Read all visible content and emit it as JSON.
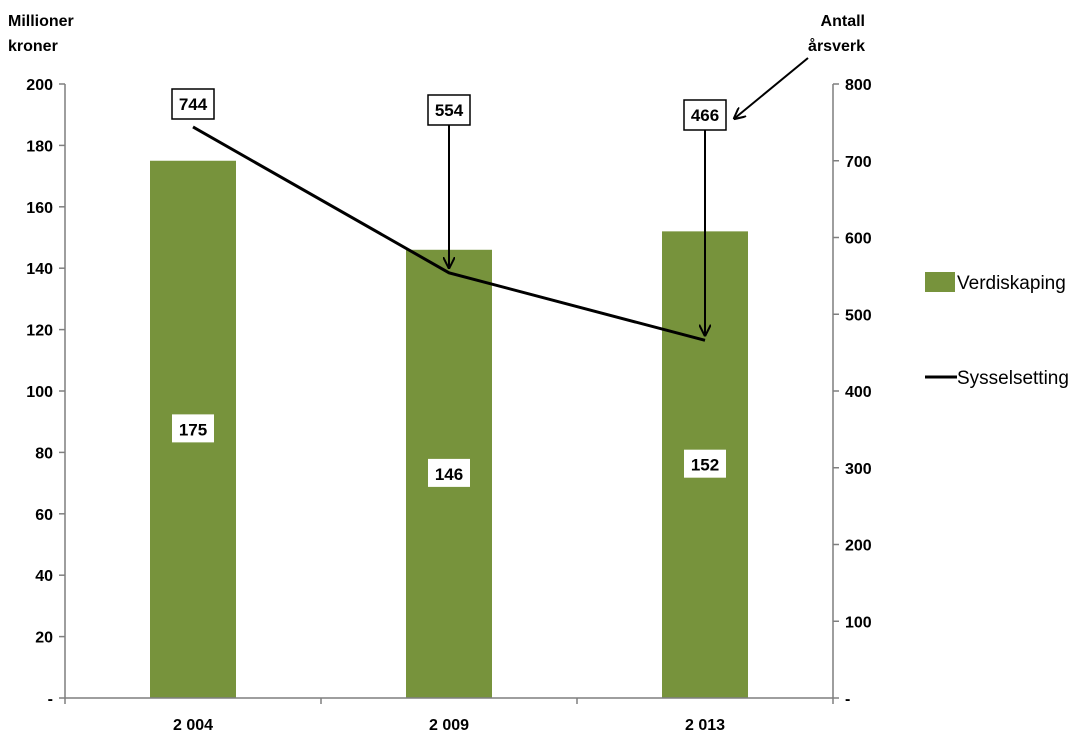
{
  "chart_data": {
    "type": "bar",
    "categories": [
      "2 004",
      "2 009",
      "2 013"
    ],
    "series": [
      {
        "name": "Verdiskaping",
        "type": "bar",
        "axis": "left",
        "values": [
          175,
          146,
          152
        ],
        "color": "#77933c"
      },
      {
        "name": "Sysselsetting",
        "type": "line",
        "axis": "right",
        "values": [
          744,
          554,
          466
        ],
        "color": "#000000"
      }
    ],
    "left_axis": {
      "title_lines": [
        "Millioner",
        "kroner"
      ],
      "ylim": [
        0,
        200
      ],
      "tick_labels": [
        "-",
        "20",
        "40",
        "60",
        "80",
        "100",
        "120",
        "140",
        "160",
        "180",
        "200"
      ]
    },
    "right_axis": {
      "title_lines": [
        "Antall",
        "årsverk"
      ],
      "ylim": [
        0,
        800
      ],
      "tick_labels": [
        "-",
        "100",
        "200",
        "300",
        "400",
        "500",
        "600",
        "700",
        "800"
      ]
    },
    "bar_data_labels": [
      "175",
      "146",
      "152"
    ],
    "line_data_labels": [
      "744",
      "554",
      "466"
    ],
    "legend_position": "right",
    "grid": false
  }
}
